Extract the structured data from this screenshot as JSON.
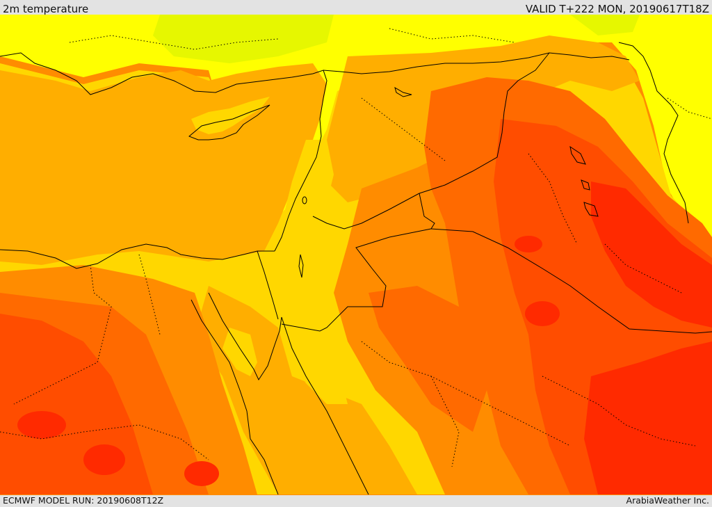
{
  "header": {
    "title": "2m temperature",
    "valid_time": "VALID T+222 MON, 20190617T18Z"
  },
  "footer": {
    "model_run": "ECMWF MODEL RUN: 20190608T12Z",
    "credit": "ArabiaWeather Inc."
  },
  "map": {
    "field": "2m temperature",
    "palette": {
      "warm_yellow_green": "#c8f000",
      "yellow": "#ffff00",
      "golden": "#ffd700",
      "amber": "#ffae00",
      "orange": "#ff8c00",
      "orange_red": "#ff6a00",
      "red_orange": "#ff4d00",
      "red": "#ff2a00",
      "border_color": "#000000"
    }
  }
}
